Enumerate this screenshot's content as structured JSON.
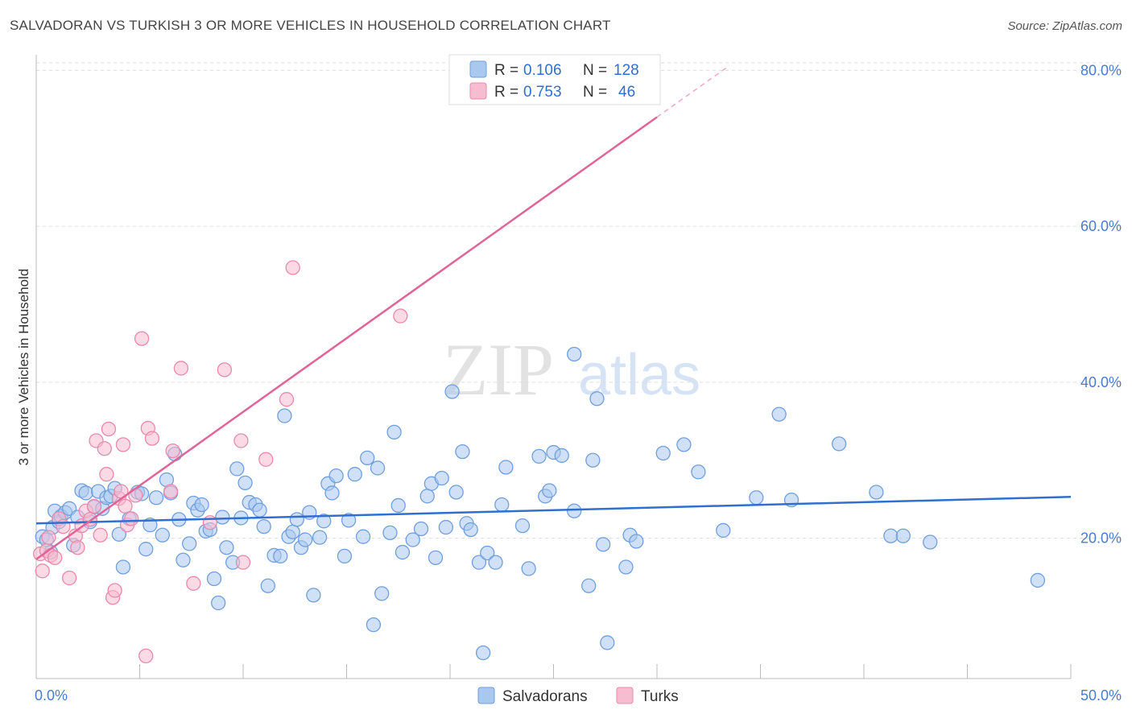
{
  "title": "SALVADORAN VS TURKISH 3 OR MORE VEHICLES IN HOUSEHOLD CORRELATION CHART",
  "source": "Source: ZipAtlas.com",
  "watermark": {
    "zip": "ZIP",
    "atlas": "atlas"
  },
  "colors": {
    "blue_fill": "#a9c8f0",
    "blue_stroke": "#6f9fdc",
    "blue_line": "#2f6fd0",
    "pink_fill": "#f7bcd0",
    "pink_stroke": "#e88aaa",
    "pink_line": "#e0649a",
    "grid": "#dddddd",
    "tick": "#4a7bd0"
  },
  "legend_top": [
    {
      "r_label": "R =",
      "r_value": "0.106",
      "n_label": "N =",
      "n_value": "128"
    },
    {
      "r_label": "R =",
      "r_value": "0.753",
      "n_label": "N =",
      "n_value": "46"
    }
  ],
  "chart_data": {
    "type": "scatter",
    "xlabel": "",
    "ylabel": "3 or more Vehicles in Household",
    "xlim": [
      0,
      50
    ],
    "ylim": [
      2,
      82
    ],
    "x_tick_labels": [
      "0.0%",
      "50.0%"
    ],
    "y_ticks": [
      20,
      40,
      60,
      80
    ],
    "y_tick_labels": [
      "20.0%",
      "40.0%",
      "60.0%",
      "80.0%"
    ],
    "grid": true,
    "legend_position": "bottom-center",
    "series": [
      {
        "name": "Salvadorans",
        "color": "#a9c8f0",
        "trend": {
          "x0": 0,
          "y0": 21.9,
          "x1": 50,
          "y1": 25.3
        },
        "points": [
          [
            0.3,
            20.2
          ],
          [
            0.5,
            19.8
          ],
          [
            0.7,
            18.2
          ],
          [
            0.8,
            21.4
          ],
          [
            0.9,
            23.5
          ],
          [
            1.1,
            22.1
          ],
          [
            1.2,
            22.8
          ],
          [
            1.4,
            23.3
          ],
          [
            1.6,
            23.8
          ],
          [
            1.8,
            19.1
          ],
          [
            2.0,
            22.7
          ],
          [
            2.2,
            26.1
          ],
          [
            2.4,
            25.8
          ],
          [
            2.6,
            22.1
          ],
          [
            2.8,
            24.0
          ],
          [
            3.0,
            26.0
          ],
          [
            3.2,
            23.8
          ],
          [
            3.4,
            25.2
          ],
          [
            3.6,
            25.4
          ],
          [
            3.8,
            26.4
          ],
          [
            4.0,
            20.5
          ],
          [
            4.2,
            16.3
          ],
          [
            4.5,
            22.5
          ],
          [
            4.9,
            25.9
          ],
          [
            5.1,
            25.7
          ],
          [
            5.3,
            18.6
          ],
          [
            5.5,
            21.7
          ],
          [
            5.8,
            25.2
          ],
          [
            6.1,
            20.4
          ],
          [
            6.3,
            27.5
          ],
          [
            6.5,
            25.8
          ],
          [
            6.7,
            30.8
          ],
          [
            6.9,
            22.4
          ],
          [
            7.1,
            17.2
          ],
          [
            7.4,
            19.3
          ],
          [
            7.6,
            24.5
          ],
          [
            7.8,
            23.6
          ],
          [
            8.0,
            24.3
          ],
          [
            8.2,
            20.9
          ],
          [
            8.4,
            21.1
          ],
          [
            8.6,
            14.8
          ],
          [
            8.8,
            11.7
          ],
          [
            9.0,
            22.7
          ],
          [
            9.2,
            18.8
          ],
          [
            9.5,
            16.9
          ],
          [
            9.7,
            28.9
          ],
          [
            9.9,
            22.6
          ],
          [
            10.1,
            27.1
          ],
          [
            10.3,
            24.6
          ],
          [
            10.6,
            24.3
          ],
          [
            10.8,
            23.6
          ],
          [
            11.0,
            21.5
          ],
          [
            11.2,
            13.9
          ],
          [
            11.5,
            17.8
          ],
          [
            11.8,
            17.7
          ],
          [
            12.0,
            35.7
          ],
          [
            12.2,
            20.2
          ],
          [
            12.4,
            20.8
          ],
          [
            12.6,
            22.4
          ],
          [
            12.8,
            18.8
          ],
          [
            13.0,
            19.8
          ],
          [
            13.2,
            23.3
          ],
          [
            13.4,
            12.7
          ],
          [
            13.7,
            20.1
          ],
          [
            13.9,
            22.2
          ],
          [
            14.1,
            27.0
          ],
          [
            14.3,
            25.8
          ],
          [
            14.5,
            28.0
          ],
          [
            14.9,
            17.7
          ],
          [
            15.1,
            22.3
          ],
          [
            15.4,
            28.2
          ],
          [
            15.8,
            20.2
          ],
          [
            16.0,
            30.3
          ],
          [
            16.3,
            8.9
          ],
          [
            16.5,
            29.0
          ],
          [
            16.7,
            12.9
          ],
          [
            17.1,
            20.7
          ],
          [
            17.3,
            33.6
          ],
          [
            17.5,
            24.2
          ],
          [
            17.7,
            18.2
          ],
          [
            18.2,
            19.8
          ],
          [
            18.6,
            21.2
          ],
          [
            18.9,
            25.4
          ],
          [
            19.1,
            27.0
          ],
          [
            19.3,
            17.5
          ],
          [
            19.6,
            27.7
          ],
          [
            19.8,
            21.4
          ],
          [
            20.1,
            38.8
          ],
          [
            20.3,
            25.9
          ],
          [
            20.6,
            31.1
          ],
          [
            20.8,
            21.9
          ],
          [
            21.0,
            21.1
          ],
          [
            21.4,
            16.9
          ],
          [
            21.6,
            5.3
          ],
          [
            21.8,
            18.1
          ],
          [
            22.2,
            16.9
          ],
          [
            22.5,
            24.3
          ],
          [
            22.7,
            29.1
          ],
          [
            23.5,
            21.6
          ],
          [
            23.8,
            16.1
          ],
          [
            24.3,
            30.5
          ],
          [
            24.6,
            25.4
          ],
          [
            24.8,
            26.1
          ],
          [
            25.0,
            31.0
          ],
          [
            25.4,
            30.6
          ],
          [
            26.0,
            23.5
          ],
          [
            26.7,
            13.9
          ],
          [
            26.9,
            30.0
          ],
          [
            27.1,
            37.9
          ],
          [
            27.4,
            19.2
          ],
          [
            27.6,
            6.6
          ],
          [
            28.5,
            16.3
          ],
          [
            28.7,
            20.4
          ],
          [
            29.0,
            19.6
          ],
          [
            30.3,
            30.9
          ],
          [
            31.3,
            32.0
          ],
          [
            32.0,
            28.5
          ],
          [
            33.2,
            21.0
          ],
          [
            34.8,
            25.2
          ],
          [
            35.9,
            35.9
          ],
          [
            36.5,
            24.9
          ],
          [
            38.8,
            32.1
          ],
          [
            40.6,
            25.9
          ],
          [
            41.3,
            20.3
          ],
          [
            41.9,
            20.3
          ],
          [
            43.2,
            19.5
          ],
          [
            48.4,
            14.6
          ],
          [
            26.0,
            43.6
          ]
        ]
      },
      {
        "name": "Turks",
        "color": "#f7bcd0",
        "trend": {
          "x0": 0,
          "y0": 17.3,
          "x1": 30,
          "y1": 74.0,
          "dash_to_x": 33.5,
          "dash_to_y": 80.6
        },
        "points": [
          [
            0.2,
            18.0
          ],
          [
            0.3,
            15.8
          ],
          [
            0.5,
            18.4
          ],
          [
            0.6,
            20.1
          ],
          [
            0.7,
            17.8
          ],
          [
            0.9,
            17.5
          ],
          [
            1.1,
            22.5
          ],
          [
            1.3,
            21.5
          ],
          [
            1.6,
            14.9
          ],
          [
            1.9,
            20.3
          ],
          [
            2.0,
            18.8
          ],
          [
            2.2,
            21.6
          ],
          [
            2.4,
            23.5
          ],
          [
            2.6,
            22.4
          ],
          [
            2.8,
            24.1
          ],
          [
            2.9,
            32.5
          ],
          [
            3.1,
            20.4
          ],
          [
            3.3,
            31.5
          ],
          [
            3.4,
            28.2
          ],
          [
            3.5,
            34.0
          ],
          [
            3.7,
            12.4
          ],
          [
            3.8,
            13.3
          ],
          [
            4.0,
            25.1
          ],
          [
            4.1,
            26.0
          ],
          [
            4.2,
            32.0
          ],
          [
            4.3,
            24.1
          ],
          [
            4.4,
            21.7
          ],
          [
            4.6,
            22.5
          ],
          [
            4.8,
            25.5
          ],
          [
            5.1,
            45.6
          ],
          [
            5.3,
            4.9
          ],
          [
            5.4,
            34.1
          ],
          [
            5.6,
            32.8
          ],
          [
            6.5,
            26.0
          ],
          [
            6.6,
            31.2
          ],
          [
            7.0,
            41.8
          ],
          [
            7.6,
            14.2
          ],
          [
            8.4,
            22.0
          ],
          [
            9.1,
            41.6
          ],
          [
            9.9,
            32.5
          ],
          [
            10.0,
            16.9
          ],
          [
            11.1,
            30.1
          ],
          [
            12.1,
            37.8
          ],
          [
            12.4,
            54.7
          ],
          [
            17.6,
            48.5
          ],
          [
            29.8,
            78.8
          ]
        ]
      }
    ]
  }
}
